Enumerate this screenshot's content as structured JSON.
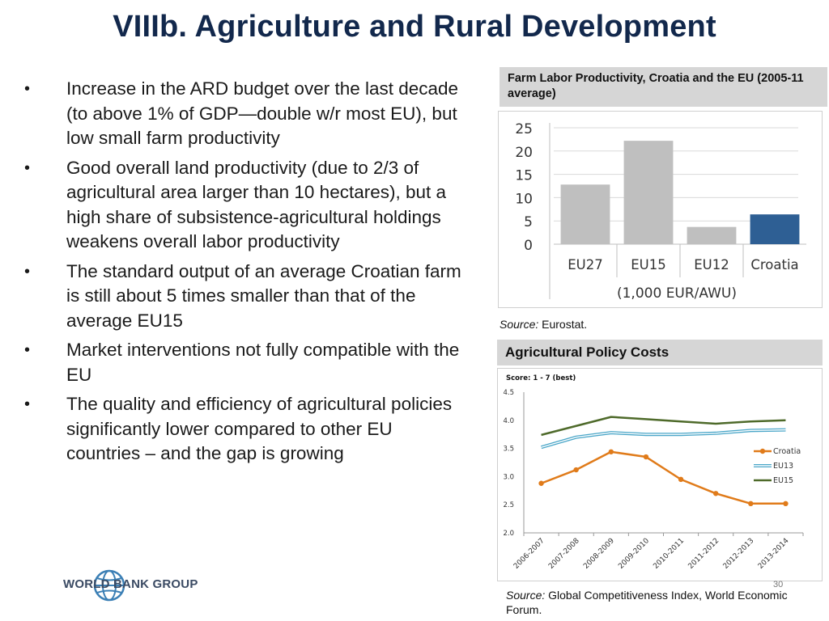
{
  "title": "VIIIb. Agriculture and Rural Development",
  "bullets": [
    "Increase in the ARD budget over the last decade (to above 1% of GDP—double w/r most EU), but low small farm productivity",
    "Good overall land productivity (due to 2/3 of agricultural area larger than 10 hectares), but a high share of subsistence-agricultural holdings weakens overall labor productivity",
    "The standard output  of an average Croatian farm is still about 5 times smaller than that of the average EU15",
    "Market interventions not fully compatible with the EU",
    "The quality and efficiency of agricultural policies significantly lower compared to other EU countries – and the gap is growing"
  ],
  "bullet_marker": "•",
  "panel1": {
    "header": "Farm Labor Productivity, Croatia and the EU (2005-11 average)",
    "source_label": "Source:",
    "source_text": "Eurostat."
  },
  "panel2": {
    "header": "Agricultural Policy Costs",
    "source_label": "Source:",
    "source_text": "Global Competitiveness Index, World Economic Forum."
  },
  "page_number": "30",
  "logo_text": "WORLD BANK GROUP",
  "colors": {
    "title": "#12284c",
    "bar_gray": "#bfbfbf",
    "bar_croatia": "#2e5f94",
    "croatia_line": "#e07b1a",
    "eu13_line": "#4aa6c8",
    "eu15_line": "#4e6a2a"
  },
  "chart_data": [
    {
      "type": "bar",
      "categories": [
        "EU27",
        "EU15",
        "EU12",
        "Croatia"
      ],
      "values": [
        12.8,
        22.2,
        3.7,
        6.4
      ],
      "xlabel": "(1,000 EUR/AWU)",
      "ylim": [
        0,
        25
      ],
      "yticks": [
        0,
        5,
        10,
        15,
        20,
        25
      ],
      "grid": true
    },
    {
      "type": "line",
      "title": "Score: 1 - 7 (best)",
      "categories": [
        "2006-2007",
        "2007-2008",
        "2008-2009",
        "2009-2010",
        "2010-2011",
        "2011-2012",
        "2012-2013",
        "2013-2014"
      ],
      "series": [
        {
          "name": "Croatia",
          "values": [
            2.88,
            3.12,
            3.44,
            3.35,
            2.95,
            2.7,
            2.52,
            2.52
          ]
        },
        {
          "name": "EU13",
          "values": [
            3.52,
            3.7,
            3.78,
            3.75,
            3.75,
            3.77,
            3.82,
            3.83
          ]
        },
        {
          "name": "EU15",
          "values": [
            3.74,
            3.9,
            4.06,
            4.02,
            3.98,
            3.94,
            3.98,
            4.0
          ]
        }
      ],
      "ylim": [
        2.0,
        4.5
      ],
      "yticks": [
        "2.0",
        "2.5",
        "3.0",
        "3.5",
        "4.0",
        "4.5"
      ],
      "legend": "right"
    }
  ]
}
